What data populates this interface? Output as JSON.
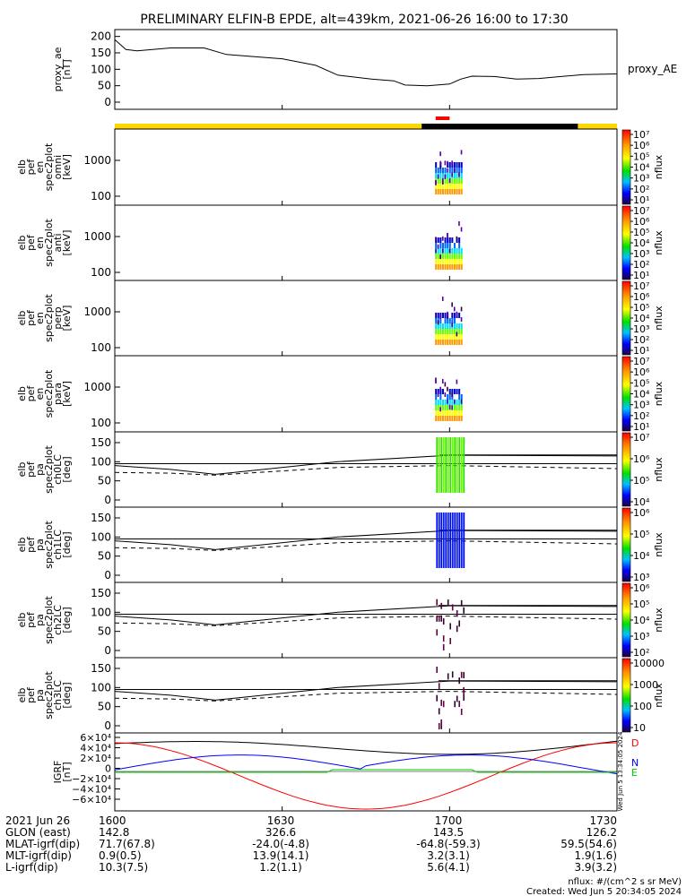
{
  "title": "PRELIMINARY ELFIN-B EPDE, alt=439km, 2021-06-26 16:00 to 17:30",
  "time_axis": {
    "start": "2021-06-26 16:00",
    "end": "2021-06-26 17:30",
    "ticks": [
      {
        "t": "2021-06-26 16:00",
        "label": "1600"
      },
      {
        "t": "2021-06-26 16:30",
        "label": "1630"
      },
      {
        "t": "2021-06-26 17:00",
        "label": "1700"
      },
      {
        "t": "2021-06-26 17:30",
        "label": "1730"
      }
    ]
  },
  "status_bar": {
    "segments": [
      {
        "from": "16:00",
        "to": "16:55",
        "color": "#ffd700"
      },
      {
        "from": "16:55",
        "to": "17:23",
        "color": "#000000"
      },
      {
        "from": "17:23",
        "to": "17:30",
        "color": "#ffd700"
      }
    ],
    "marks": {
      "from": "16:57.5",
      "to": "17:00",
      "color": "#ff0000"
    }
  },
  "panels": [
    {
      "id": "proxy_ae",
      "type": "line",
      "ylabel": [
        "proxy_ae",
        "[nT]"
      ],
      "legend_right": "proxy_AE",
      "yticks": [
        "200",
        "150",
        "100",
        "50",
        "0"
      ],
      "ytick_values": [
        200,
        150,
        100,
        50,
        0
      ],
      "ylim": [
        0,
        210
      ],
      "x_minutes": [
        0,
        2,
        4,
        10,
        16,
        20,
        24,
        30,
        36,
        40,
        46,
        50,
        52,
        56,
        60,
        62,
        64,
        68,
        72,
        76,
        80,
        84,
        90
      ],
      "values": [
        190,
        160,
        156,
        165,
        165,
        145,
        140,
        132,
        112,
        82,
        70,
        65,
        52,
        50,
        55,
        70,
        79,
        78,
        70,
        72,
        78,
        84,
        86
      ]
    },
    {
      "id": "en_omni",
      "type": "spectrogram",
      "ylabel": [
        "elb",
        "pef",
        "en",
        "spec2plot",
        "omni",
        "[keV]"
      ],
      "yticks": [
        "1000",
        "100"
      ],
      "colorbar": {
        "label": "nflux",
        "ticks": [
          "10⁷",
          "10⁶",
          "10⁵",
          "10⁴",
          "10³",
          "10²",
          "10¹"
        ]
      }
    },
    {
      "id": "en_anti",
      "type": "spectrogram",
      "ylabel": [
        "elb",
        "pef",
        "en",
        "spec2plot",
        "anti",
        "[keV]"
      ],
      "yticks": [
        "1000",
        "100"
      ],
      "colorbar": {
        "label": "nflux",
        "ticks": [
          "10⁷",
          "10⁶",
          "10⁵",
          "10⁴",
          "10³",
          "10²",
          "10¹"
        ]
      }
    },
    {
      "id": "en_perp",
      "type": "spectrogram",
      "ylabel": [
        "elb",
        "pef",
        "en",
        "spec2plot",
        "perp",
        "[keV]"
      ],
      "yticks": [
        "1000",
        "100"
      ],
      "colorbar": {
        "label": "nflux",
        "ticks": [
          "10⁷",
          "10⁶",
          "10⁵",
          "10⁴",
          "10³",
          "10²",
          "10¹"
        ]
      }
    },
    {
      "id": "en_para",
      "type": "spectrogram",
      "ylabel": [
        "elb",
        "pef",
        "en",
        "spec2plot",
        "para",
        "[keV]"
      ],
      "yticks": [
        "1000",
        "100"
      ],
      "colorbar": {
        "label": "nflux",
        "ticks": [
          "10⁷",
          "10⁶",
          "10⁵",
          "10⁴",
          "10³",
          "10²",
          "10¹"
        ]
      }
    },
    {
      "id": "pa_ch0",
      "type": "pitch",
      "ylabel": [
        "elb",
        "pef",
        "pa",
        "spec2plot",
        "ch0LC",
        "[deg]"
      ],
      "yticks": [
        "150",
        "100",
        "50",
        "0"
      ],
      "colorbar": {
        "label": "nflux",
        "ticks": [
          "10⁷",
          "10⁶",
          "10⁵",
          "10⁴"
        ]
      },
      "bar_color": "green"
    },
    {
      "id": "pa_ch1",
      "type": "pitch",
      "ylabel": [
        "elb",
        "pef",
        "pa",
        "spec2plot",
        "ch1LC",
        "[deg]"
      ],
      "yticks": [
        "150",
        "100",
        "50",
        "0"
      ],
      "colorbar": {
        "label": "nflux",
        "ticks": [
          "10⁶",
          "10⁵",
          "10⁴",
          "10³"
        ]
      },
      "bar_color": "blue"
    },
    {
      "id": "pa_ch2",
      "type": "pitch",
      "ylabel": [
        "elb",
        "pef",
        "pa",
        "spec2plot",
        "ch2LC",
        "[deg]"
      ],
      "yticks": [
        "150",
        "100",
        "50",
        "0"
      ],
      "colorbar": {
        "label": "nflux",
        "ticks": [
          "10⁶",
          "10⁵",
          "10⁴",
          "10³",
          "10²"
        ]
      },
      "bar_color": "dark"
    },
    {
      "id": "pa_ch3",
      "type": "pitch",
      "ylabel": [
        "elb",
        "pef",
        "pa",
        "spec2plot",
        "ch3LC",
        "[deg]"
      ],
      "yticks": [
        "150",
        "100",
        "50",
        "0"
      ],
      "colorbar": {
        "label": "nflux",
        "ticks": [
          "10000",
          "1000",
          "100",
          "10"
        ]
      },
      "bar_color": "dark"
    },
    {
      "id": "igrf",
      "type": "line",
      "ylabel": [
        "IGRF",
        "[nT]"
      ],
      "yticks": [
        "6×10⁴",
        "4×10⁴",
        "2×10⁴",
        "0",
        "−2×10⁴",
        "−4×10⁴",
        "−6×10⁴"
      ],
      "legend": [
        {
          "label": "D",
          "color": "#ff0000"
        },
        {
          "label": "N",
          "color": "#0000ff"
        },
        {
          "label": "E",
          "color": "#00cc00"
        }
      ],
      "side_stamp": "Wed Jun  5 13:34:05 2024"
    }
  ],
  "orbit_table": {
    "rows": [
      {
        "label": "2021 Jun 26",
        "values": [
          "1600",
          "1630",
          "1700",
          "1730"
        ]
      },
      {
        "label": "GLON (east)",
        "values": [
          "142.8",
          "326.6",
          "143.5",
          "126.2"
        ]
      },
      {
        "label": "MLAT-igrf(dip)",
        "values": [
          "71.7(67.8)",
          "-24.0(-4.8)",
          "-64.8(-59.3)",
          "59.5(54.6)"
        ]
      },
      {
        "label": "MLT-igrf(dip)",
        "values": [
          "0.9(0.5)",
          "13.9(14.1)",
          "3.2(3.1)",
          "1.9(1.6)"
        ]
      },
      {
        "label": "L-igrf(dip)",
        "values": [
          "10.3(7.5)",
          "1.2(1.1)",
          "5.6(4.1)",
          "3.9(3.2)"
        ]
      }
    ]
  },
  "footer": {
    "units": "nflux: #/(cm^2 s sr MeV)",
    "created": "Created: Wed Jun  5 20:34:05 2024"
  },
  "chart_data": {
    "type": "line",
    "title": "PRELIMINARY ELFIN-B EPDE, alt=439km, 2021-06-26 16:00 to 17:30",
    "x_axis": "time",
    "series": [
      {
        "name": "proxy_AE",
        "x_minutes": [
          0,
          2,
          4,
          10,
          16,
          20,
          24,
          30,
          36,
          40,
          46,
          50,
          52,
          56,
          60,
          62,
          64,
          68,
          72,
          76,
          80,
          84,
          90
        ],
        "values": [
          190,
          160,
          156,
          165,
          165,
          145,
          140,
          132,
          112,
          82,
          70,
          65,
          52,
          50,
          55,
          70,
          79,
          78,
          70,
          72,
          78,
          84,
          86
        ]
      }
    ],
    "ylabel": "proxy_ae [nT]",
    "ylim": [
      0,
      210
    ]
  }
}
